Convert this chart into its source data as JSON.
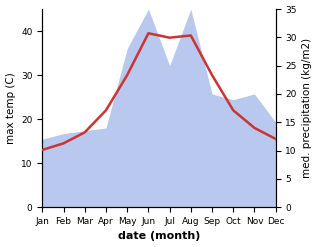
{
  "months": [
    "Jan",
    "Feb",
    "Mar",
    "Apr",
    "May",
    "Jun",
    "Jul",
    "Aug",
    "Sep",
    "Oct",
    "Nov",
    "Dec"
  ],
  "month_indices": [
    0,
    1,
    2,
    3,
    4,
    5,
    6,
    7,
    8,
    9,
    10,
    11
  ],
  "max_temp": [
    13.0,
    14.5,
    17.0,
    22.0,
    30.0,
    39.5,
    38.5,
    39.0,
    30.0,
    22.0,
    18.0,
    15.5
  ],
  "precipitation": [
    12.0,
    13.0,
    13.5,
    14.0,
    28.0,
    35.0,
    25.0,
    35.0,
    20.0,
    19.0,
    20.0,
    15.0
  ],
  "temp_color": "#cc3333",
  "precip_fill_color": "#b8c8ee",
  "temp_ylim": [
    0,
    45
  ],
  "precip_ylim": [
    0,
    35
  ],
  "temp_yticks": [
    0,
    10,
    20,
    30,
    40
  ],
  "precip_yticks": [
    0,
    5,
    10,
    15,
    20,
    25,
    30,
    35
  ],
  "xlabel": "date (month)",
  "ylabel_left": "max temp (C)",
  "ylabel_right": "med. precipitation (kg/m2)",
  "background_color": "#ffffff",
  "line_width": 1.8,
  "font_size_ticks": 6.5,
  "font_size_labels": 7.5,
  "font_size_xlabel": 8
}
